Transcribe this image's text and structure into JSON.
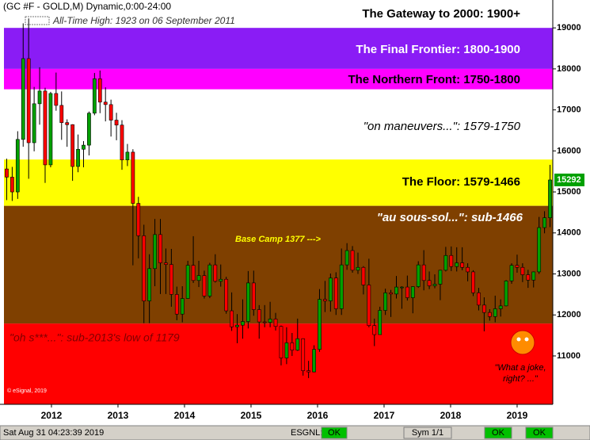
{
  "chart_data": {
    "type": "candlestick",
    "header": "(GC #F - GOLD,M) Dynamic,0:00-24:00",
    "ath_note": "All-Time High:  1923 on 06 September 2011",
    "ylim": [
      9820,
      19680
    ],
    "yticks": [
      11000,
      12000,
      13000,
      14000,
      15000,
      16000,
      17000,
      18000,
      19000
    ],
    "xlim": [
      2011.286,
      2019.536
    ],
    "xticks": [
      2012,
      2013,
      2014,
      2015,
      2016,
      2017,
      2018,
      2019
    ],
    "up_color": "#00a000",
    "down_color": "#ff0000",
    "zones": [
      {
        "label": "The Gateway to 2000:  1900+",
        "from": 19000,
        "color": "#ffffff"
      },
      {
        "label": "The Final Frontier:  1800-1900",
        "from": 18000,
        "to": 19000,
        "color": "#8a1cf5"
      },
      {
        "label": "The Northern Front:  1750-1800",
        "from": 17500,
        "to": 18000,
        "color": "#ff00ff"
      },
      {
        "label": "\"on maneuvers...\":  1579-1750",
        "from": 15790,
        "to": 17500,
        "color": "#ffffff"
      },
      {
        "label": "The Floor:  1579-1466",
        "from": 14660,
        "to": 15790,
        "color": "#ffff00"
      },
      {
        "label": "\"au sous-sol...\":  sub-1466",
        "from": 11790,
        "to": 14660,
        "color": "#7f4000"
      },
      {
        "label": "\"oh s***...\":  sub-2013's low of 1179",
        "to": 11790,
        "color": "#ff0000"
      }
    ],
    "open": [
      15560,
      15360,
      15000,
      16280,
      18250,
      16200,
      17150,
      17460,
      15660,
      17400,
      17110,
      16690,
      16640,
      15620,
      16040,
      16140,
      16920,
      17760,
      17190,
      17130,
      16750,
      16630,
      15780,
      15970,
      14720,
      13930,
      12340,
      13130,
      13960,
      13270,
      13230,
      12500,
      12020,
      12400,
      13210,
      12840,
      12960,
      12460,
      13220,
      12820,
      12870,
      12100,
      11710,
      11750,
      11840,
      12780,
      12130,
      11830,
      11820,
      11900,
      11720,
      10950,
      11320,
      11140,
      11420,
      10640,
      10610,
      11160,
      12380,
      12340,
      12900,
      12150,
      13220,
      13570,
      13090,
      13160,
      12730,
      11740,
      11520,
      12110,
      12540,
      12510,
      12680,
      12680,
      12420,
      12690,
      13220,
      12840,
      12710,
      12750,
      13090,
      13450,
      13180,
      13270,
      13160,
      13050,
      12540,
      12240,
      12060,
      11960,
      12150,
      12220,
      12830,
      13210,
      13160,
      12980,
      12850,
      13050,
      14130,
      14370
    ],
    "high": [
      15810,
      15610,
      16480,
      19110,
      19230,
      17560,
      18040,
      17540,
      17440,
      17910,
      17450,
      16770,
      16650,
      16400,
      16240,
      16960,
      17900,
      17960,
      17550,
      17250,
      16930,
      16750,
      16170,
      16040,
      14880,
      14200,
      13480,
      14340,
      14340,
      13620,
      13610,
      12690,
      12700,
      13320,
      13920,
      13320,
      13080,
      13270,
      13480,
      13230,
      12930,
      12550,
      12020,
      12380,
      13070,
      13080,
      12240,
      12240,
      12320,
      12050,
      11740,
      11700,
      11560,
      11910,
      11430,
      10880,
      11260,
      12630,
      12830,
      13010,
      13040,
      13620,
      13750,
      13680,
      13520,
      13190,
      13370,
      11910,
      12200,
      12640,
      12610,
      12950,
      12700,
      12960,
      12700,
      13310,
      13580,
      13060,
      12990,
      13100,
      13660,
      13670,
      13650,
      13650,
      13260,
      13090,
      12660,
      12430,
      12140,
      12470,
      12380,
      12850,
      13260,
      13470,
      13260,
      13100,
      13060,
      14390,
      14530,
      15660
    ],
    "low": [
      14800,
      14780,
      14830,
      16100,
      15320,
      15990,
      16640,
      15220,
      15600,
      16980,
      16270,
      16100,
      15270,
      15480,
      15600,
      15890,
      16870,
      16920,
      16720,
      16350,
      16260,
      15540,
      15630,
      13210,
      13380,
      11800,
      11800,
      12700,
      12510,
      12510,
      12200,
      11870,
      11820,
      12390,
      12780,
      12680,
      12400,
      12410,
      12790,
      12690,
      12030,
      11610,
      11310,
      11420,
      11670,
      11980,
      11420,
      11700,
      11700,
      11620,
      10770,
      10800,
      11000,
      11120,
      10520,
      10460,
      10600,
      11100,
      12070,
      12080,
      12000,
      12000,
      13100,
      13030,
      13000,
      12500,
      11700,
      11240,
      11520,
      12000,
      11950,
      12400,
      12150,
      12350,
      12040,
      12660,
      12600,
      12630,
      12650,
      12360,
      13060,
      13070,
      13060,
      13090,
      12820,
      12460,
      12110,
      11600,
      11860,
      11820,
      11960,
      12210,
      12760,
      13030,
      12800,
      12660,
      12670,
      13000,
      13990,
      14140
    ],
    "close": [
      15360,
      15000,
      16280,
      18250,
      16200,
      17150,
      17460,
      15660,
      17400,
      17110,
      16690,
      16640,
      15620,
      16040,
      16140,
      16920,
      17760,
      17190,
      17130,
      16750,
      16630,
      15780,
      15970,
      14720,
      13930,
      12340,
      13130,
      13960,
      13270,
      13230,
      12500,
      12020,
      12400,
      13210,
      12840,
      12960,
      12460,
      13220,
      12820,
      12870,
      12100,
      11710,
      11750,
      11840,
      12780,
      12130,
      11830,
      11820,
      11900,
      11720,
      10950,
      11320,
      11140,
      11420,
      10640,
      10610,
      11160,
      12380,
      12340,
      12900,
      12150,
      13220,
      13570,
      13090,
      13160,
      12730,
      11740,
      11520,
      12110,
      12540,
      12510,
      12680,
      12680,
      12420,
      12690,
      13220,
      12840,
      12710,
      12750,
      13090,
      13450,
      13180,
      13270,
      13160,
      13050,
      12540,
      12240,
      12060,
      11960,
      12150,
      12220,
      12830,
      13210,
      13160,
      12980,
      12850,
      13050,
      14130,
      14370,
      15292
    ],
    "annotations": {
      "base_camp": "Base Camp 1377 --->",
      "joke_1": "\"What a joke,",
      "joke_2": "right? ...\"",
      "copyright": "© eSignal, 2019"
    },
    "status_bar": {
      "time": "Sat Aug 31 04:23:39 2019",
      "feed": "ESGNL:",
      "feed_state": "OK",
      "sym": "Sym 1/1",
      "state_2": "OK",
      "state_3": "OK"
    }
  }
}
